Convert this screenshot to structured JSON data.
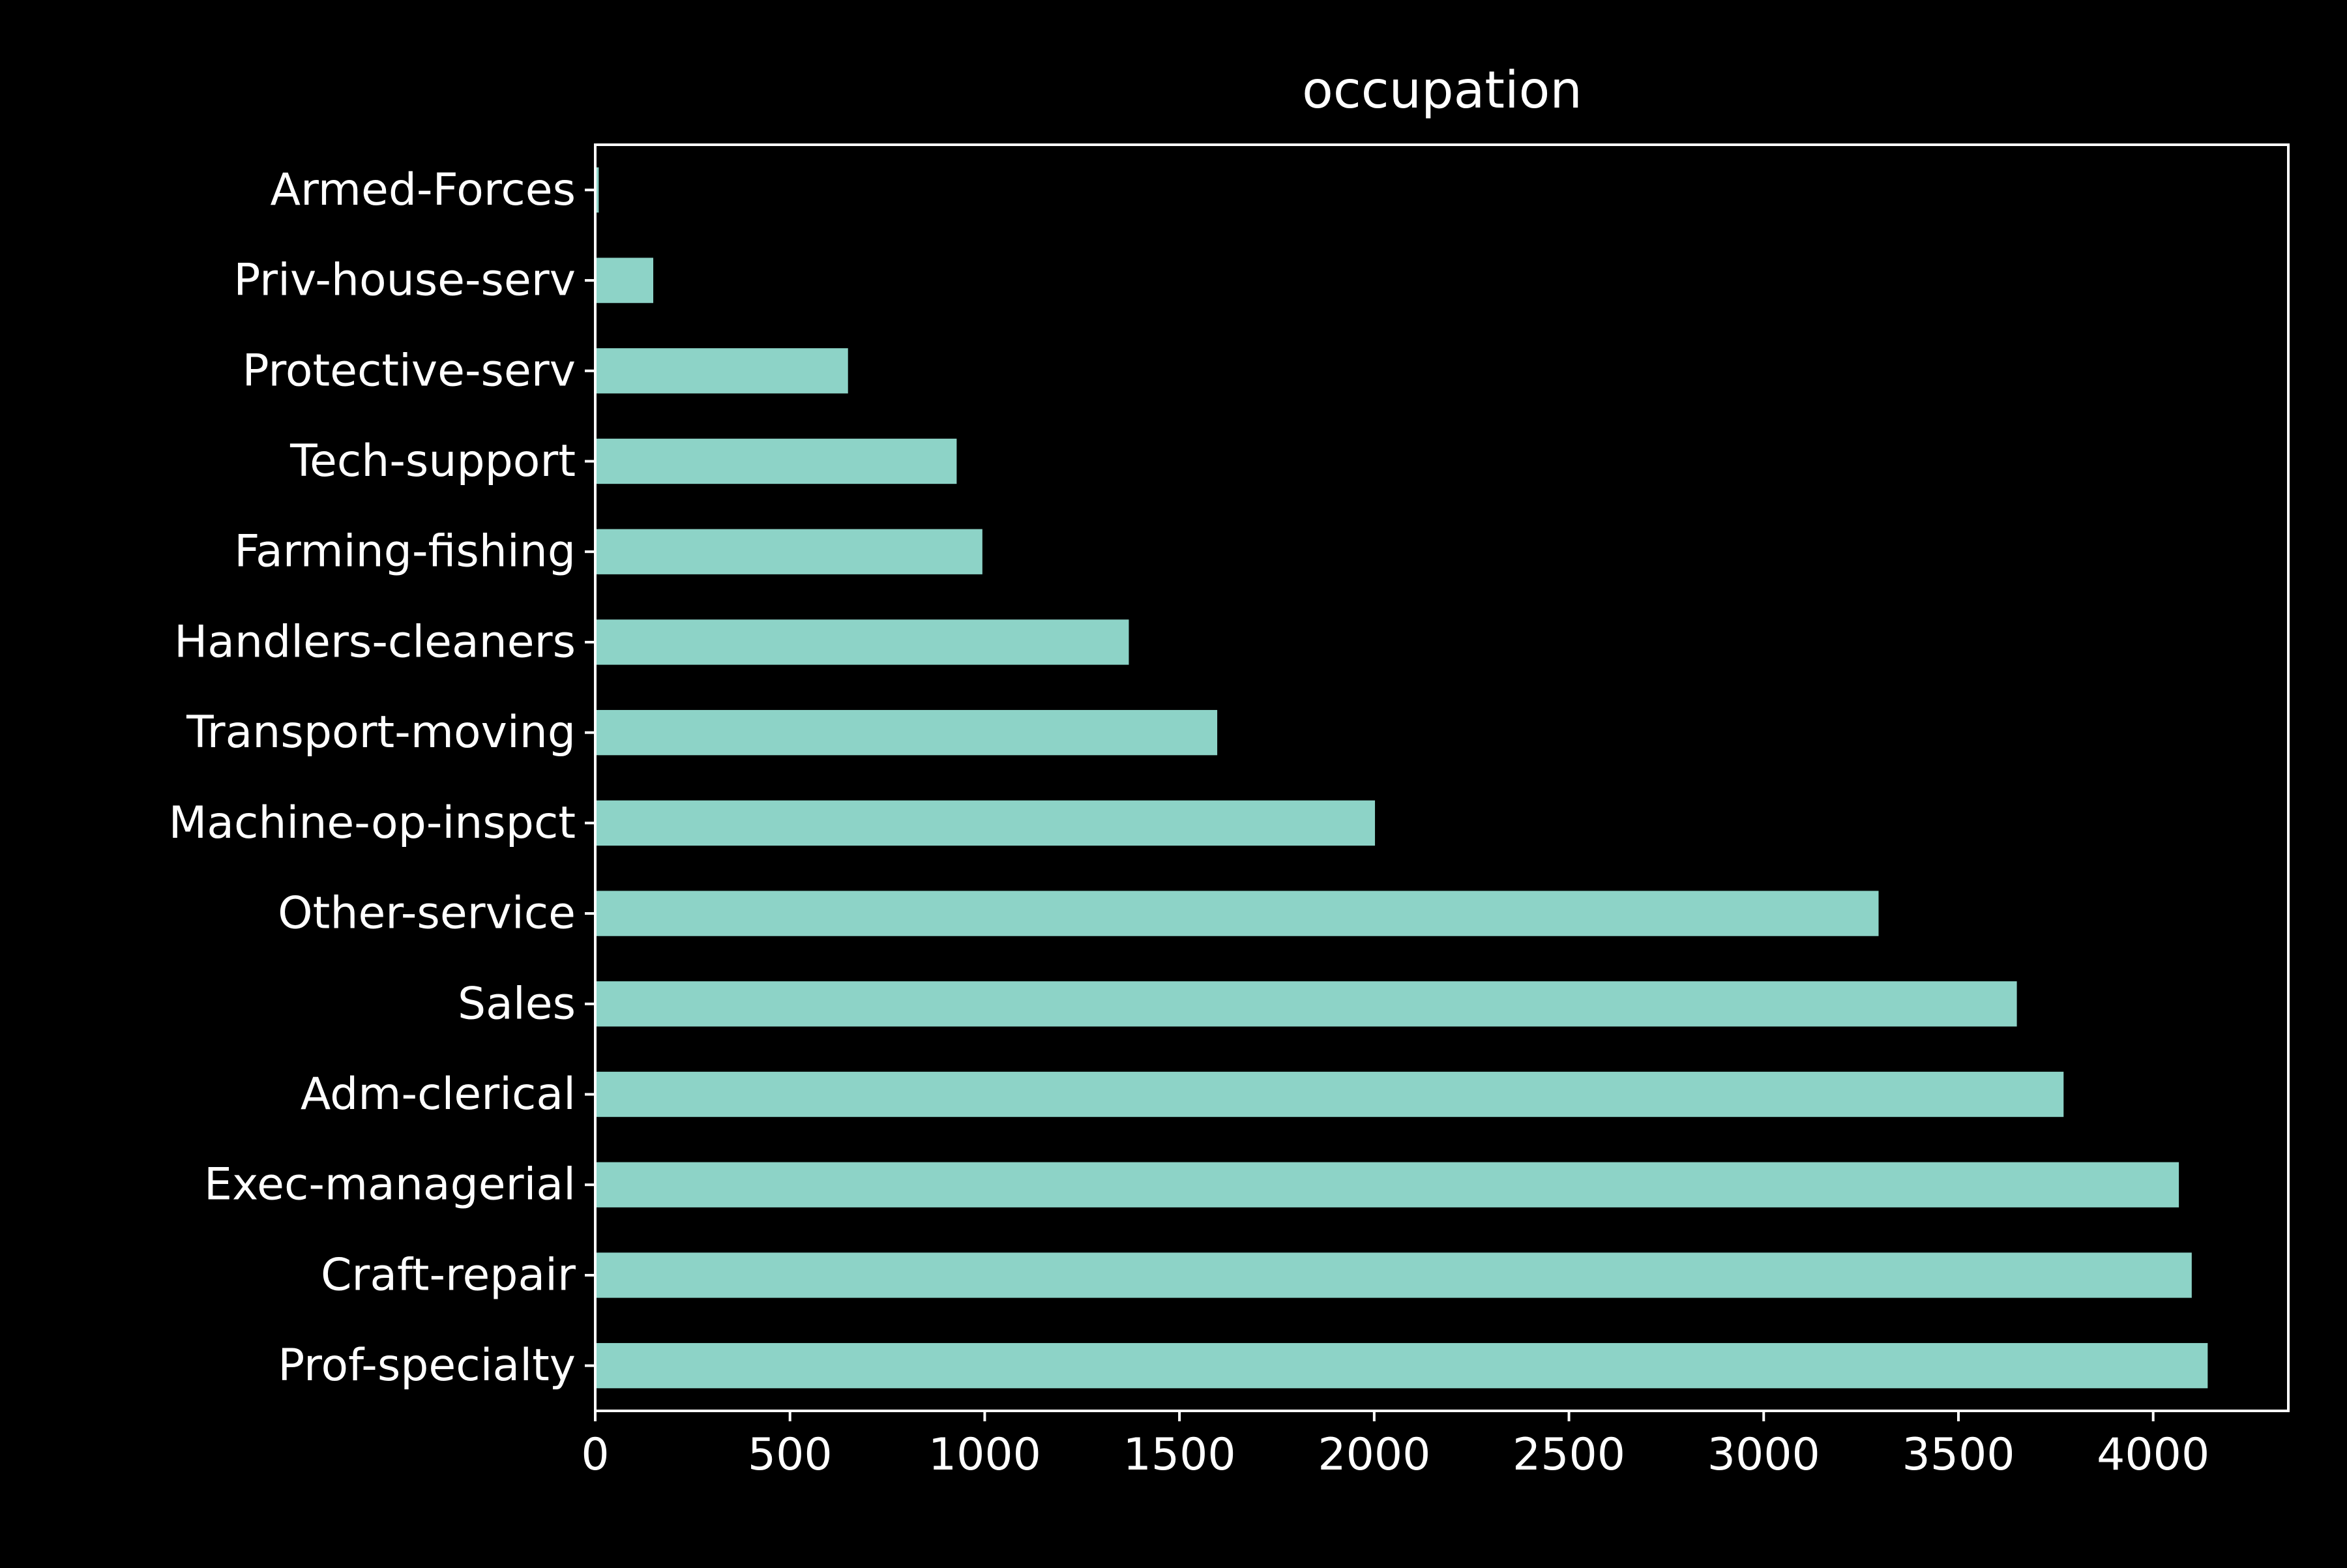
{
  "chart_data": {
    "type": "bar",
    "orientation": "horizontal",
    "title": "occupation",
    "xlabel": "",
    "ylabel": "",
    "categories": [
      "Armed-Forces",
      "Priv-house-serv",
      "Protective-serv",
      "Tech-support",
      "Farming-fishing",
      "Handlers-cleaners",
      "Transport-moving",
      "Machine-op-inspct",
      "Other-service",
      "Sales",
      "Adm-clerical",
      "Exec-managerial",
      "Craft-repair",
      "Prof-specialty"
    ],
    "values": [
      9,
      149,
      649,
      928,
      994,
      1370,
      1597,
      2002,
      3295,
      3650,
      3770,
      4066,
      4099,
      4140
    ],
    "xlim": [
      0,
      4347
    ],
    "xticks": [
      0,
      500,
      1000,
      1500,
      2000,
      2500,
      3000,
      3500,
      4000
    ],
    "grid": false,
    "legend": "none",
    "colors": {
      "background": "#000000",
      "bar": "#8dd3c7",
      "axes": "#ffffff",
      "text": "#ffffff"
    }
  }
}
